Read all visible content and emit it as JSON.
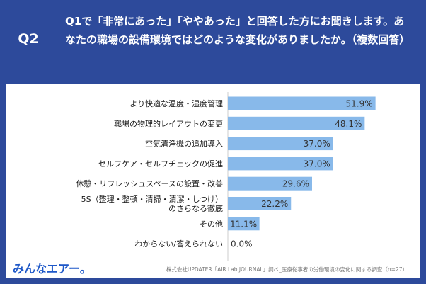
{
  "header": {
    "q_number": "Q2",
    "question": "Q1で「非常にあった」「ややあった」と回答した方にお聞きします。あなたの職場の設備環境ではどのような変化がありましたか。（複数回答）"
  },
  "footer": {
    "logo": "みんなエアー。",
    "source": "株式会社UPDATER「AIR Lab.JOURNAL」調べ_医療従事者の労働環境の変化に関する調査（n=27）"
  },
  "colors": {
    "bar": "#88b9ea",
    "header_bg": "#2d4a9b",
    "logo": "#1e58c8"
  },
  "chart_data": {
    "type": "bar",
    "orientation": "horizontal",
    "categories": [
      [
        "より快適な温度・湿度管理"
      ],
      [
        "職場の物理的レイアウトの変更"
      ],
      [
        "空気清浄機の追加導入"
      ],
      [
        "セルフケア・セルフチェックの促進"
      ],
      [
        "休憩・リフレッシュスペースの設置・改善"
      ],
      [
        "5S（整理・整頓・清掃・清潔・しつけ）",
        "のさらなる徹底"
      ],
      [
        "その他"
      ],
      [
        "わからない/答えられない"
      ]
    ],
    "values": [
      51.9,
      48.1,
      37.0,
      37.0,
      29.6,
      22.2,
      11.1,
      0.0
    ],
    "value_labels": [
      "51.9%",
      "48.1%",
      "37.0%",
      "37.0%",
      "29.6%",
      "22.2%",
      "11.1%",
      "0.0%"
    ],
    "xlim": [
      0,
      100
    ],
    "grid": false
  }
}
